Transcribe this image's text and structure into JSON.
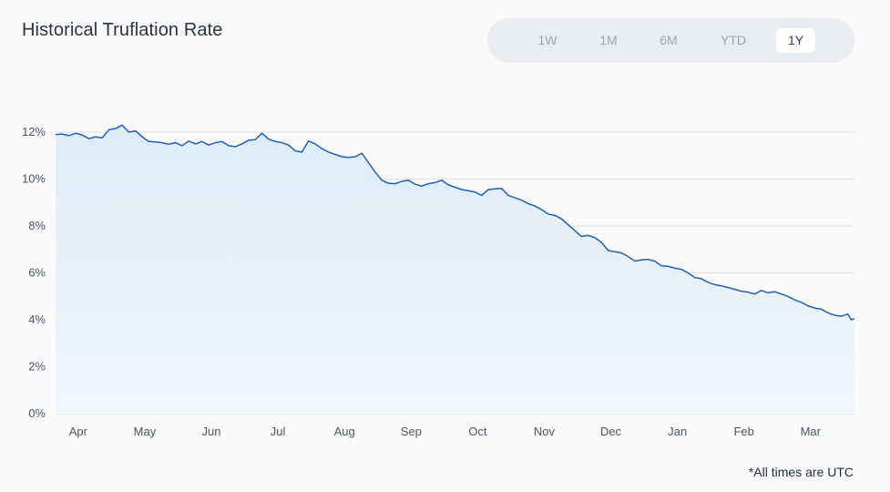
{
  "title": "Historical Truflation Rate",
  "range_buttons": [
    {
      "label": "1W",
      "active": false
    },
    {
      "label": "1M",
      "active": false
    },
    {
      "label": "6M",
      "active": false
    },
    {
      "label": "YTD",
      "active": false
    },
    {
      "label": "1Y",
      "active": true
    }
  ],
  "footnote": "*All times are UTC",
  "colors": {
    "line": "#1f5fbf",
    "area_top": "#dcecf8",
    "area_bottom": "#f1f6fb",
    "grid": "#dddddd"
  },
  "chart_data": {
    "type": "area",
    "title": "Historical Truflation Rate",
    "xlabel": "",
    "ylabel": "",
    "ylim": [
      0,
      12
    ],
    "yticks": [
      0,
      2,
      4,
      6,
      8,
      10,
      12
    ],
    "ytick_labels": [
      "0%",
      "2%",
      "4%",
      "6%",
      "8%",
      "10%",
      "12%"
    ],
    "xlim": [
      0,
      12
    ],
    "xticks": [
      {
        "label": "Apr",
        "x": 0.34
      },
      {
        "label": "May",
        "x": 1.34
      },
      {
        "label": "Jun",
        "x": 2.34
      },
      {
        "label": "Jul",
        "x": 3.34
      },
      {
        "label": "Aug",
        "x": 4.34
      },
      {
        "label": "Sep",
        "x": 5.34
      },
      {
        "label": "Oct",
        "x": 6.34
      },
      {
        "label": "Nov",
        "x": 7.34
      },
      {
        "label": "Dec",
        "x": 8.34
      },
      {
        "label": "Jan",
        "x": 9.34
      },
      {
        "label": "Feb",
        "x": 10.34
      },
      {
        "label": "Mar",
        "x": 11.34
      }
    ],
    "grid": true,
    "legend": "none",
    "series": [
      {
        "x": [
          0.0,
          0.1,
          0.2,
          0.3,
          0.4,
          0.5,
          0.6,
          0.7,
          0.8,
          0.9,
          1.0,
          1.1,
          1.2,
          1.3,
          1.4,
          1.5,
          1.6,
          1.7,
          1.8,
          1.9,
          2.0,
          2.1,
          2.2,
          2.3,
          2.4,
          2.5,
          2.6,
          2.7,
          2.8,
          2.9,
          3.0,
          3.1,
          3.2,
          3.3,
          3.4,
          3.5,
          3.6,
          3.7,
          3.8,
          3.9,
          4.0,
          4.1,
          4.2,
          4.3,
          4.4,
          4.5,
          4.6,
          4.7,
          4.8,
          4.9,
          5.0,
          5.1,
          5.2,
          5.3,
          5.4,
          5.5,
          5.6,
          5.7,
          5.8,
          5.9,
          6.0,
          6.1,
          6.2,
          6.3,
          6.4,
          6.5,
          6.6,
          6.7,
          6.8,
          6.9,
          7.0,
          7.1,
          7.2,
          7.3,
          7.4,
          7.5,
          7.6,
          7.7,
          7.8,
          7.9,
          8.0,
          8.1,
          8.2,
          8.3,
          8.4,
          8.5,
          8.6,
          8.7,
          8.8,
          8.9,
          9.0,
          9.1,
          9.2,
          9.3,
          9.4,
          9.5,
          9.6,
          9.7,
          9.8,
          9.9,
          10.0,
          10.1,
          10.2,
          10.3,
          10.4,
          10.5,
          10.6,
          10.7,
          10.8,
          10.9,
          11.0,
          11.1,
          11.2,
          11.3,
          11.4,
          11.5,
          11.6,
          11.7,
          11.8,
          11.9,
          11.95,
          12.0
        ],
        "y": [
          11.9,
          11.92,
          11.85,
          11.95,
          11.88,
          11.72,
          11.8,
          11.75,
          12.1,
          12.15,
          12.3,
          12.0,
          12.05,
          11.8,
          11.6,
          11.58,
          11.55,
          11.48,
          11.55,
          11.42,
          11.62,
          11.5,
          11.6,
          11.45,
          11.55,
          11.6,
          11.42,
          11.38,
          11.5,
          11.65,
          11.68,
          11.95,
          11.7,
          11.6,
          11.55,
          11.45,
          11.2,
          11.15,
          11.62,
          11.5,
          11.3,
          11.15,
          11.05,
          10.95,
          10.92,
          10.95,
          11.1,
          10.7,
          10.3,
          9.95,
          9.82,
          9.8,
          9.9,
          9.95,
          9.78,
          9.7,
          9.8,
          9.85,
          9.95,
          9.75,
          9.65,
          9.55,
          9.5,
          9.45,
          9.3,
          9.55,
          9.58,
          9.6,
          9.3,
          9.2,
          9.1,
          8.95,
          8.85,
          8.7,
          8.5,
          8.45,
          8.3,
          8.05,
          7.8,
          7.55,
          7.6,
          7.5,
          7.3,
          6.95,
          6.9,
          6.85,
          6.7,
          6.5,
          6.55,
          6.58,
          6.5,
          6.3,
          6.28,
          6.2,
          6.15,
          6.0,
          5.8,
          5.75,
          5.6,
          5.5,
          5.45,
          5.38,
          5.3,
          5.22,
          5.18,
          5.1,
          5.25,
          5.15,
          5.2,
          5.1,
          5.0,
          4.85,
          4.75,
          4.6,
          4.5,
          4.45,
          4.3,
          4.2,
          4.15,
          4.25,
          4.0,
          4.05
        ]
      }
    ]
  }
}
